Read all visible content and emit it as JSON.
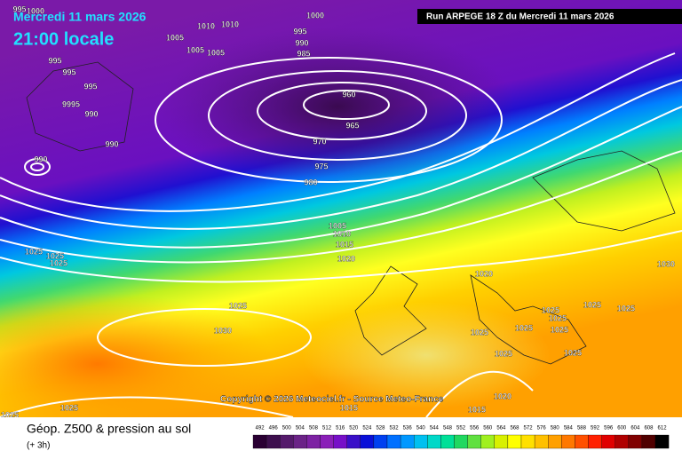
{
  "header": {
    "date": "Mercredi 11 mars 2026",
    "time": "21:00 locale",
    "run": "Run ARPEGE 18 Z du Mercredi 11 mars 2026"
  },
  "copyright": "Copyright © 2026 Meteociel.fr - Source Meteo-France",
  "footer": {
    "title": "Géop. Z500 & pression au sol",
    "step": "(+ 3h)"
  },
  "pressure_labels": [
    1000,
    1000,
    995,
    1005,
    1010,
    1010,
    1005,
    1005,
    995,
    990,
    985,
    995,
    995,
    995,
    9995,
    990,
    990,
    990,
    960,
    965,
    970,
    975,
    980,
    1005,
    1010,
    1015,
    1020,
    1025,
    1025,
    1025,
    1020,
    1030,
    1025,
    1030,
    1025,
    1025,
    1025,
    1025,
    1025,
    1025,
    1025,
    1025,
    1025,
    1020,
    1015,
    1015,
    1025,
    1025
  ],
  "colorbar": {
    "ticks": [
      492,
      496,
      500,
      504,
      508,
      512,
      516,
      520,
      524,
      528,
      532,
      536,
      540,
      544,
      548,
      552,
      556,
      560,
      564,
      568,
      572,
      576,
      580,
      584,
      588,
      592,
      596,
      600,
      604,
      608,
      612
    ],
    "colors": [
      "#2a0033",
      "#3d0f4d",
      "#551a6b",
      "#6b2387",
      "#7d22a3",
      "#8a1fb8",
      "#7710c8",
      "#3a10c8",
      "#0a10d8",
      "#0040f0",
      "#0070ff",
      "#0098ff",
      "#00c0f0",
      "#00d8c8",
      "#00e098",
      "#20d860",
      "#60e040",
      "#a0f020",
      "#d8f000",
      "#ffff00",
      "#ffe000",
      "#ffc000",
      "#ffa000",
      "#ff7800",
      "#ff5000",
      "#ff2000",
      "#e00000",
      "#b00000",
      "#800000",
      "#500000",
      "#000000"
    ]
  }
}
